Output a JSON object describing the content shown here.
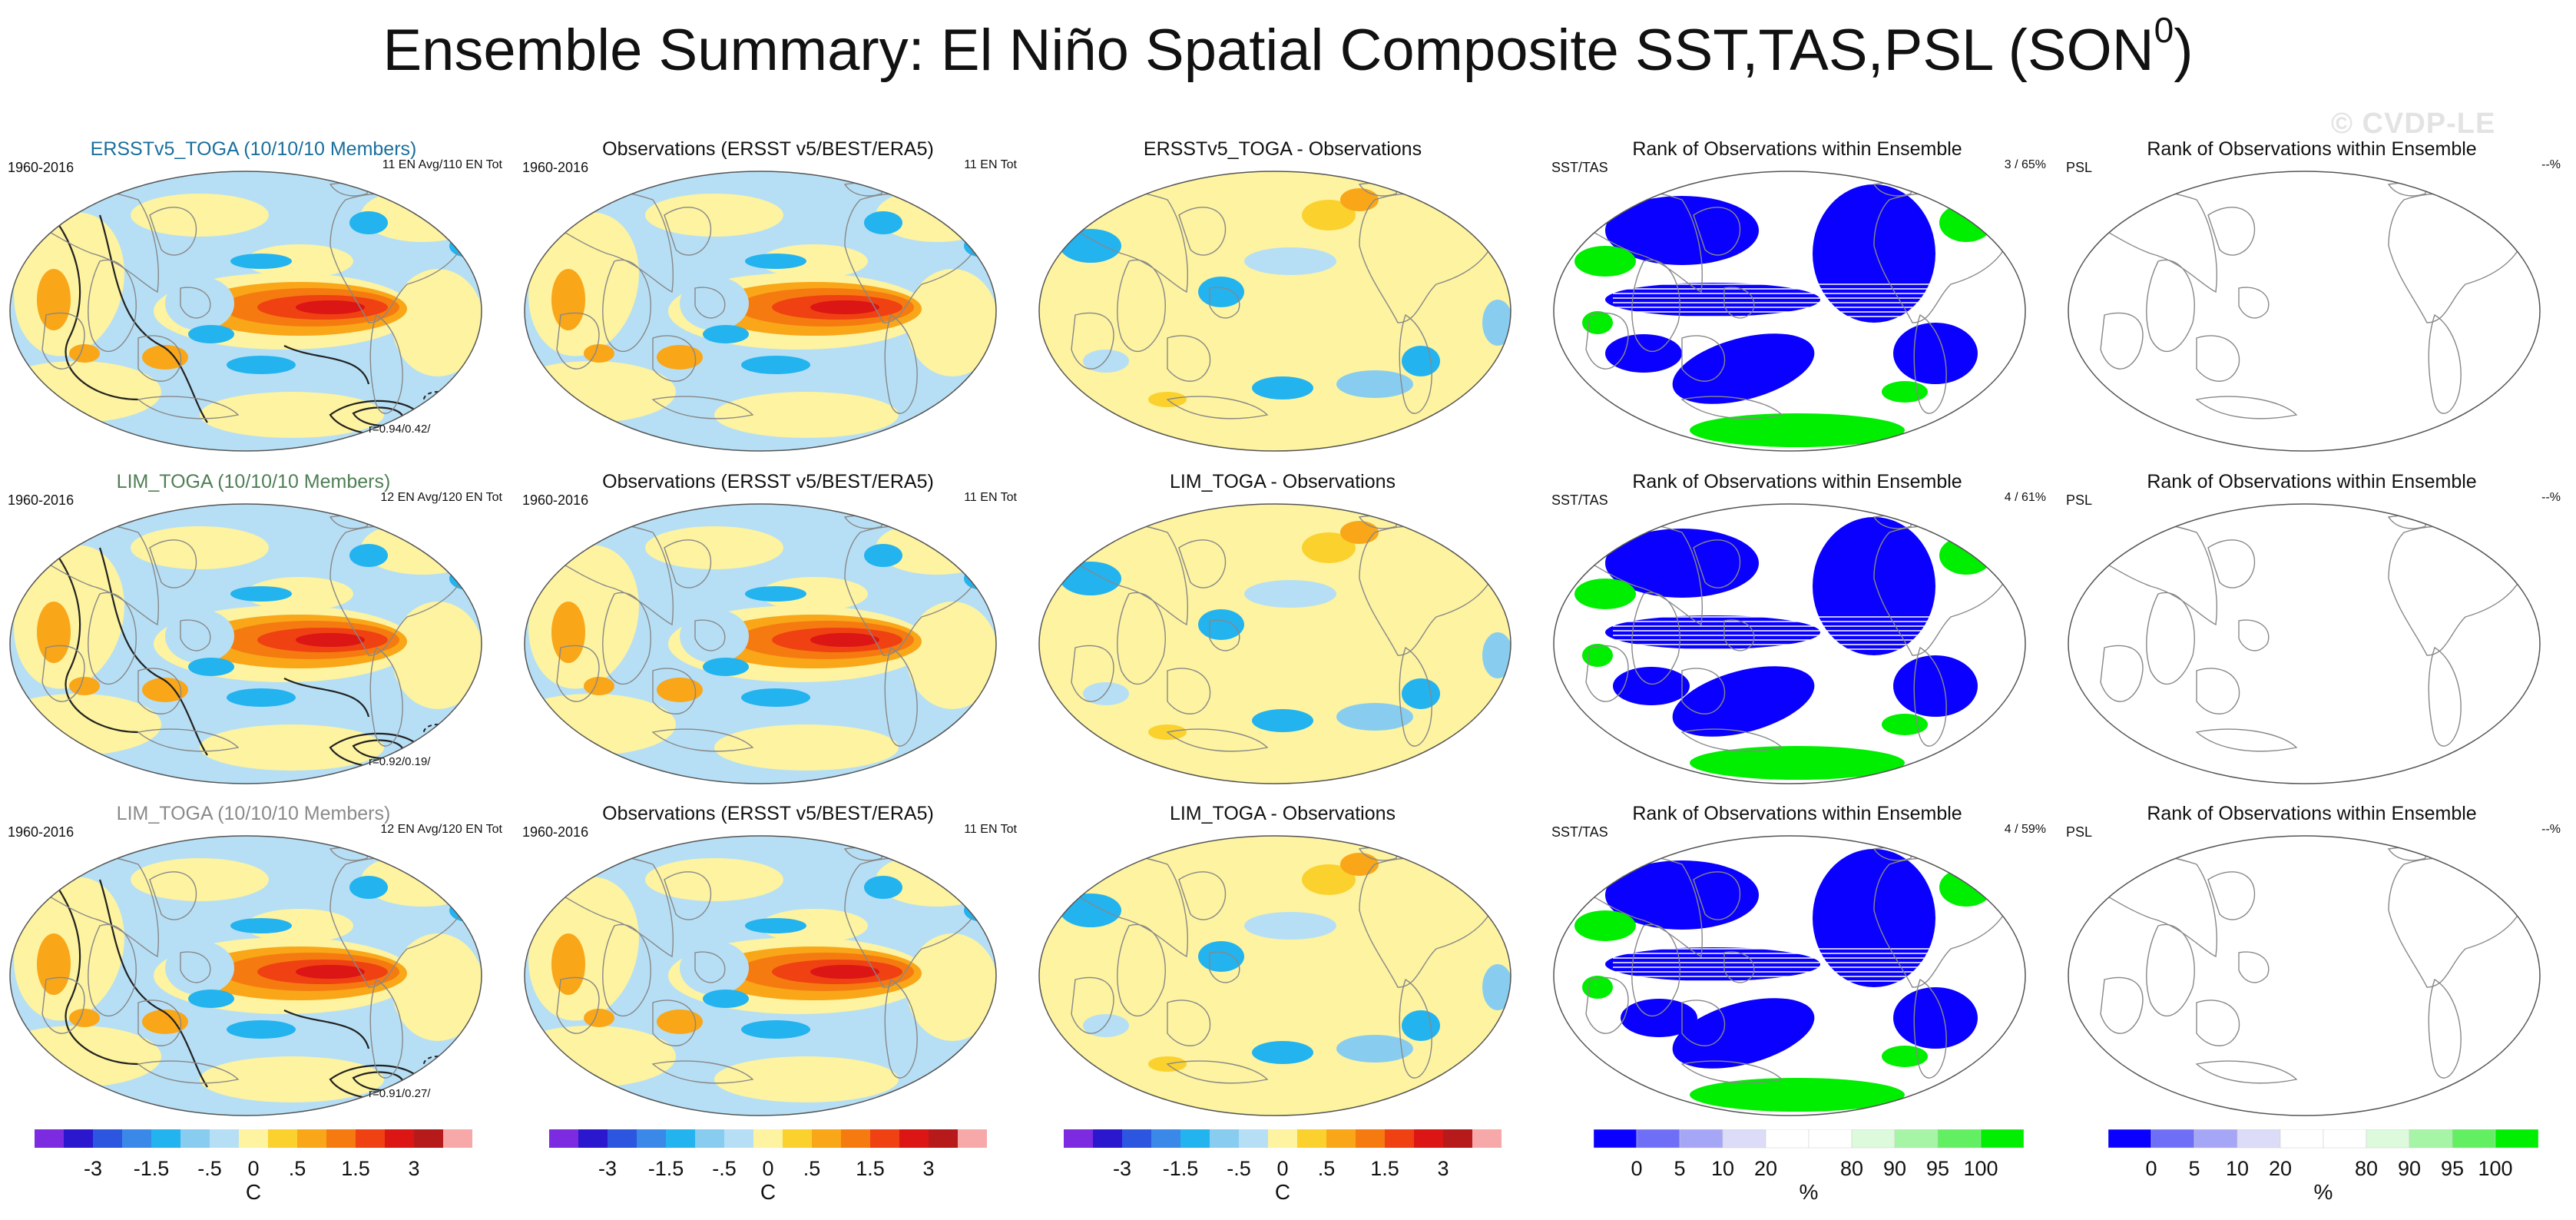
{
  "title": {
    "main": "Ensemble Summary: El Niño Spatial Composite SST,TAS,PSL (SON",
    "superscript": "0",
    "close": ")"
  },
  "watermark": "© CVDP-LE",
  "colors": {
    "sst_scale": [
      "#7c2be0",
      "#2a17ce",
      "#2c56e0",
      "#3a89e8",
      "#23b3ef",
      "#88cdf0",
      "#b6dff5",
      "#fdf3a0",
      "#fbd12e",
      "#f9a619",
      "#f57b10",
      "#ef4112",
      "#dc1515",
      "#b61a1a",
      "#f7a9a9"
    ],
    "rank_scale": [
      "#0a00ff",
      "#6e6ef6",
      "#a6a6f6",
      "#dcdcf8",
      "#ffffff",
      "#ffffff",
      "#ddfadd",
      "#a6f5a6",
      "#62f062",
      "#00ee00"
    ],
    "ocean_light_blue": "#b6dff5",
    "yellow": "#fdf3a0"
  },
  "rows": [
    {
      "panels": [
        {
          "type": "model",
          "title": "ERSSTv5_TOGA (10/10/10 Members)",
          "title_color": "#1a6f9c",
          "left": "1960-2016",
          "right": "11 EN Avg/110 EN Tot",
          "corr": "r=0.94/0.42/"
        },
        {
          "type": "obs",
          "title": "Observations (ERSST v5/BEST/ERA5)",
          "left": "1960-2016",
          "right": "11 EN Tot"
        },
        {
          "type": "diff",
          "title": "ERSSTv5_TOGA - Observations"
        },
        {
          "type": "rank",
          "title": "Rank of Observations within Ensemble",
          "left": "SST/TAS",
          "right": "3 /  65%"
        },
        {
          "type": "blank",
          "title": "Rank of Observations within Ensemble",
          "left": "PSL",
          "right": "--%"
        }
      ]
    },
    {
      "panels": [
        {
          "type": "model",
          "title": "LIM_TOGA (10/10/10 Members)",
          "title_color": "#4f7f55",
          "left": "1960-2016",
          "right": "12 EN Avg/120 EN Tot",
          "corr": "r=0.92/0.19/"
        },
        {
          "type": "obs",
          "title": "Observations (ERSST v5/BEST/ERA5)",
          "left": "1960-2016",
          "right": "11 EN Tot"
        },
        {
          "type": "diff",
          "title": "LIM_TOGA - Observations"
        },
        {
          "type": "rank",
          "title": "Rank of Observations within Ensemble",
          "left": "SST/TAS",
          "right": "4 /  61%"
        },
        {
          "type": "blank",
          "title": "Rank of Observations within Ensemble",
          "left": "PSL",
          "right": "--%"
        }
      ]
    },
    {
      "panels": [
        {
          "type": "model",
          "title": "LIM_TOGA (10/10/10 Members)",
          "title_color": "#8a8a8a",
          "left": "1960-2016",
          "right": "12 EN Avg/120 EN Tot",
          "corr": "r=0.91/0.27/"
        },
        {
          "type": "obs",
          "title": "Observations (ERSST v5/BEST/ERA5)",
          "left": "1960-2016",
          "right": "11 EN Tot"
        },
        {
          "type": "diff",
          "title": "LIM_TOGA - Observations"
        },
        {
          "type": "rank",
          "title": "Rank of Observations within Ensemble",
          "left": "SST/TAS",
          "right": "4 /  59%"
        },
        {
          "type": "blank",
          "title": "Rank of Observations within Ensemble",
          "left": "PSL",
          "right": "--%"
        }
      ]
    }
  ],
  "colorbars": [
    {
      "kind": "sst",
      "ticks": [
        "-3",
        "-1.5",
        "-.5",
        "0",
        ".5",
        "1.5",
        "3"
      ],
      "unit": "C"
    },
    {
      "kind": "sst",
      "ticks": [
        "-3",
        "-1.5",
        "-.5",
        "0",
        ".5",
        "1.5",
        "3"
      ],
      "unit": "C"
    },
    {
      "kind": "sst",
      "ticks": [
        "-3",
        "-1.5",
        "-.5",
        "0",
        ".5",
        "1.5",
        "3"
      ],
      "unit": "C"
    },
    {
      "kind": "rank",
      "ticks": [
        "0",
        "5",
        "10",
        "20",
        "80",
        "90",
        "95",
        "100"
      ],
      "unit": "%"
    },
    {
      "kind": "rank",
      "ticks": [
        "0",
        "5",
        "10",
        "20",
        "80",
        "90",
        "95",
        "100"
      ],
      "unit": "%"
    }
  ],
  "chart_data": {
    "type": "heatmap",
    "title": "Ensemble Summary: El Niño Spatial Composite SST,TAS,PSL (SON0)",
    "period": "1960-2016",
    "sst_colorbar_levels": [
      -3,
      -1.5,
      -0.5,
      0,
      0.5,
      1.5,
      3
    ],
    "sst_unit": "C",
    "rank_colorbar_levels": [
      0,
      5,
      10,
      20,
      80,
      90,
      95,
      100
    ],
    "rank_unit": "%",
    "pattern_correlations": [
      "r=0.94/0.42/",
      "r=0.92/0.19/",
      "r=0.91/0.27/"
    ],
    "rank_percentages": [
      "3 /  65%",
      "4 /  61%",
      "4 /  59%",
      "--%"
    ]
  }
}
